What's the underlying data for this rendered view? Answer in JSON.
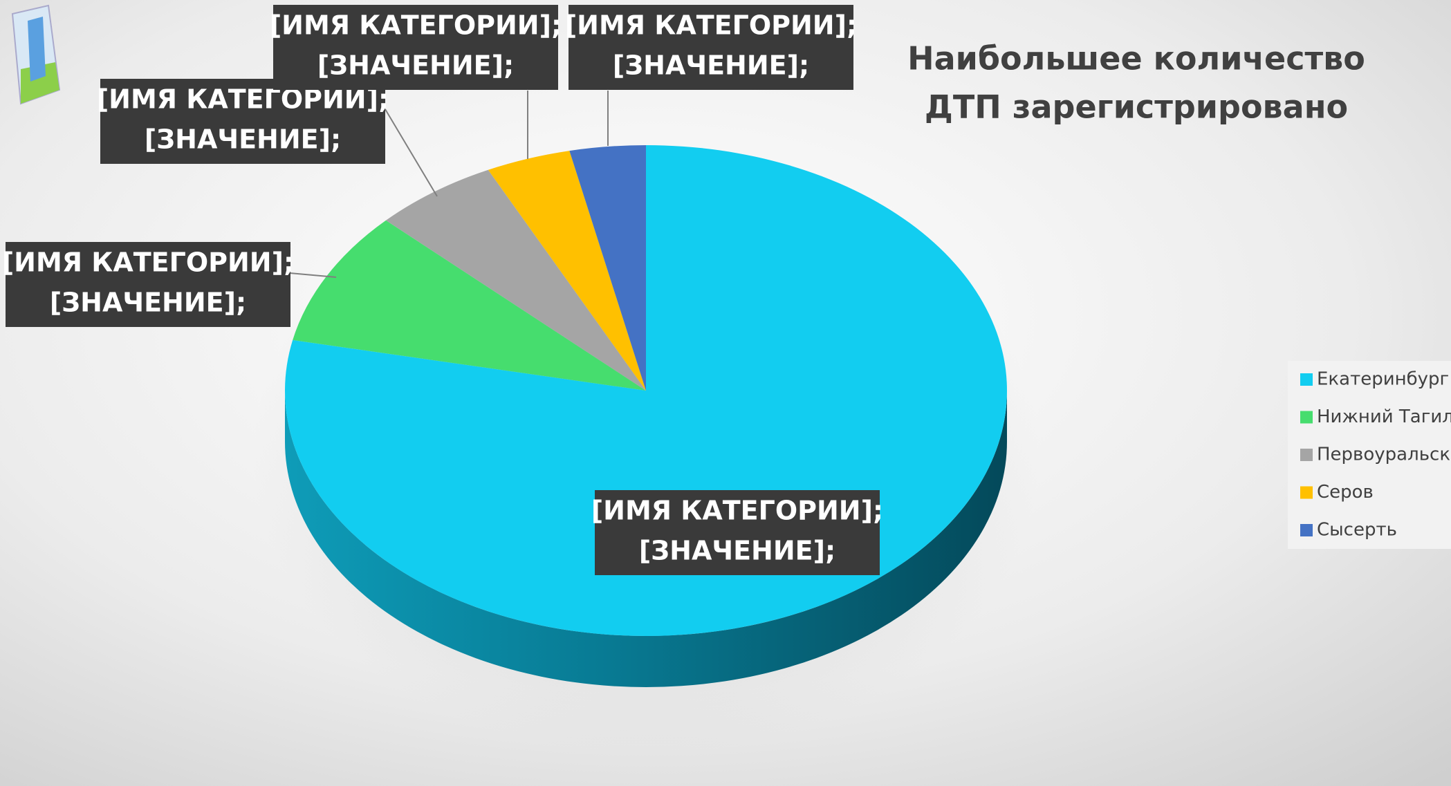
{
  "chart_data": {
    "type": "pie3d",
    "title": [
      "Наибольшее количество",
      "ДТП зарегистрировано"
    ],
    "categories": [
      "Екатеринбург",
      "Нижний Тагил",
      "Первоуральск",
      "Серов",
      "Сысерть"
    ],
    "values": [
      78.3,
      8.9,
      5.6,
      3.8,
      3.4
    ],
    "colors": [
      "#12cdf0",
      "#46dd6e",
      "#a5a5a5",
      "#ffc000",
      "#4472c4"
    ],
    "data_labels": [
      [
        "[ИМЯ КАТЕГОРИИ];",
        "[ЗНАЧЕНИЕ];"
      ],
      [
        "[ИМЯ КАТЕГОРИИ];",
        "[ЗНАЧЕНИЕ];"
      ],
      [
        "[ИМЯ КАТЕГОРИИ];",
        "[ЗНАЧЕНИЕ];"
      ],
      [
        "[ИМЯ КАТЕГОРИИ];",
        "[ЗНАЧЕНИЕ];"
      ],
      [
        "[ИМЯ КАТЕГОРИИ];",
        "[ЗНАЧЕНИЕ];"
      ]
    ],
    "legend": "right"
  }
}
